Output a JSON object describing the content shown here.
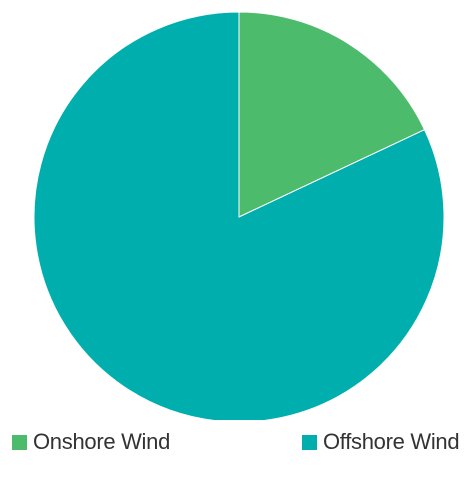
{
  "chart_data": {
    "type": "pie",
    "slices": [
      {
        "label": "Onshore Wind",
        "value": 18,
        "color": "#4cbb6c"
      },
      {
        "label": "Offshore Wind",
        "value": 82,
        "color": "#00aeae"
      }
    ],
    "start_angle": "top (12 o'clock), clockwise",
    "legend_position": "bottom"
  }
}
